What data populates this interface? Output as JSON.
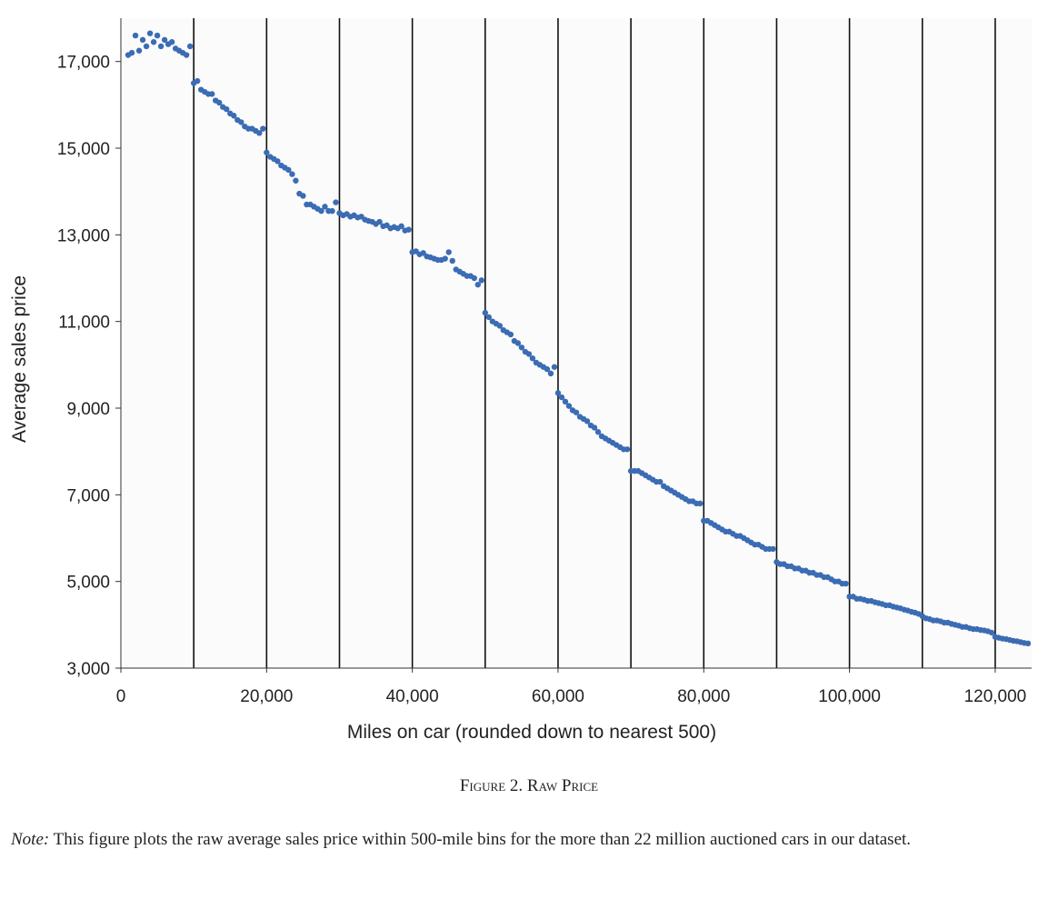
{
  "chart_data": {
    "type": "scatter",
    "x_label": "Miles on car (rounded down to nearest 500)",
    "y_label": "Average sales price",
    "color": "#3b6cb4",
    "xlim": [
      0,
      125000
    ],
    "ylim": [
      3000,
      18000
    ],
    "xticks": [
      0,
      {
        "value": 20000,
        "label": "20,000"
      },
      {
        "value": 40000,
        "label": "40,000"
      },
      {
        "value": 60000,
        "label": "60,000"
      },
      {
        "value": 80000,
        "label": "80,000"
      },
      {
        "value": 100000,
        "label": "100,000"
      },
      {
        "value": 120000,
        "label": "120,000"
      }
    ],
    "yticks": [
      {
        "value": 3000,
        "label": "3,000"
      },
      {
        "value": 5000,
        "label": "5,000"
      },
      {
        "value": 7000,
        "label": "7,000"
      },
      {
        "value": 9000,
        "label": "9,000"
      },
      {
        "value": 11000,
        "label": "11,000"
      },
      {
        "value": 13000,
        "label": "13,000"
      },
      {
        "value": 15000,
        "label": "15,000"
      },
      {
        "value": 17000,
        "label": "17,000"
      }
    ],
    "vertical_lines": [
      10000,
      20000,
      30000,
      40000,
      50000,
      60000,
      70000,
      80000,
      90000,
      100000,
      110000,
      120000
    ],
    "x": [
      1000,
      1500,
      2000,
      2500,
      3000,
      3500,
      4000,
      4500,
      5000,
      5500,
      6000,
      6500,
      7000,
      7500,
      8000,
      8500,
      9000,
      9500,
      10000,
      10500,
      11000,
      11500,
      12000,
      12500,
      13000,
      13500,
      14000,
      14500,
      15000,
      15500,
      16000,
      16500,
      17000,
      17500,
      18000,
      18500,
      19000,
      19500,
      20000,
      20500,
      21000,
      21500,
      22000,
      22500,
      23000,
      23500,
      24000,
      24500,
      25000,
      25500,
      26000,
      26500,
      27000,
      27500,
      28000,
      28500,
      29000,
      29500,
      30000,
      30500,
      31000,
      31500,
      32000,
      32500,
      33000,
      33500,
      34000,
      34500,
      35000,
      35500,
      36000,
      36500,
      37000,
      37500,
      38000,
      38500,
      39000,
      39500,
      40000,
      40500,
      41000,
      41500,
      42000,
      42500,
      43000,
      43500,
      44000,
      44500,
      45000,
      45500,
      46000,
      46500,
      47000,
      47500,
      48000,
      48500,
      49000,
      49500,
      50000,
      50500,
      51000,
      51500,
      52000,
      52500,
      53000,
      53500,
      54000,
      54500,
      55000,
      55500,
      56000,
      56500,
      57000,
      57500,
      58000,
      58500,
      59000,
      59500,
      60000,
      60500,
      61000,
      61500,
      62000,
      62500,
      63000,
      63500,
      64000,
      64500,
      65000,
      65500,
      66000,
      66500,
      67000,
      67500,
      68000,
      68500,
      69000,
      69500,
      70000,
      70500,
      71000,
      71500,
      72000,
      72500,
      73000,
      73500,
      74000,
      74500,
      75000,
      75500,
      76000,
      76500,
      77000,
      77500,
      78000,
      78500,
      79000,
      79500,
      80000,
      80500,
      81000,
      81500,
      82000,
      82500,
      83000,
      83500,
      84000,
      84500,
      85000,
      85500,
      86000,
      86500,
      87000,
      87500,
      88000,
      88500,
      89000,
      89500,
      90000,
      90500,
      91000,
      91500,
      92000,
      92500,
      93000,
      93500,
      94000,
      94500,
      95000,
      95500,
      96000,
      96500,
      97000,
      97500,
      98000,
      98500,
      99000,
      99500,
      100000,
      100500,
      101000,
      101500,
      102000,
      102500,
      103000,
      103500,
      104000,
      104500,
      105000,
      105500,
      106000,
      106500,
      107000,
      107500,
      108000,
      108500,
      109000,
      109500,
      110000,
      110500,
      111000,
      111500,
      112000,
      112500,
      113000,
      113500,
      114000,
      114500,
      115000,
      115500,
      116000,
      116500,
      117000,
      117500,
      118000,
      118500,
      119000,
      119500,
      120000,
      120500,
      121000,
      121500,
      122000,
      122500,
      123000,
      123500,
      124000,
      124500
    ],
    "values": [
      17150,
      17200,
      17600,
      17250,
      17500,
      17350,
      17650,
      17450,
      17600,
      17350,
      17500,
      17400,
      17450,
      17300,
      17250,
      17200,
      17150,
      17350,
      16500,
      16550,
      16350,
      16300,
      16250,
      16250,
      16100,
      16050,
      15950,
      15900,
      15800,
      15750,
      15650,
      15600,
      15500,
      15450,
      15450,
      15400,
      15350,
      15450,
      14900,
      14800,
      14750,
      14700,
      14600,
      14550,
      14500,
      14400,
      14250,
      13950,
      13900,
      13700,
      13700,
      13650,
      13600,
      13550,
      13650,
      13550,
      13550,
      13750,
      13500,
      13450,
      13480,
      13420,
      13450,
      13400,
      13420,
      13350,
      13320,
      13300,
      13250,
      13300,
      13200,
      13220,
      13150,
      13180,
      13150,
      13200,
      13100,
      13120,
      12600,
      12620,
      12550,
      12580,
      12500,
      12480,
      12450,
      12420,
      12420,
      12450,
      12600,
      12400,
      12200,
      12150,
      12100,
      12050,
      12050,
      12000,
      11850,
      11950,
      11200,
      11100,
      11000,
      10950,
      10900,
      10800,
      10750,
      10700,
      10550,
      10500,
      10400,
      10300,
      10250,
      10150,
      10050,
      10000,
      9950,
      9900,
      9800,
      9950,
      9350,
      9250,
      9150,
      9050,
      8950,
      8900,
      8800,
      8750,
      8700,
      8600,
      8550,
      8450,
      8350,
      8300,
      8250,
      8200,
      8150,
      8100,
      8050,
      8050,
      7550,
      7550,
      7550,
      7500,
      7450,
      7400,
      7350,
      7300,
      7300,
      7200,
      7150,
      7100,
      7050,
      7000,
      6950,
      6900,
      6850,
      6850,
      6800,
      6800,
      6400,
      6400,
      6350,
      6300,
      6250,
      6200,
      6150,
      6150,
      6100,
      6050,
      6050,
      6000,
      5950,
      5900,
      5850,
      5850,
      5800,
      5750,
      5750,
      5750,
      5450,
      5400,
      5400,
      5350,
      5350,
      5300,
      5300,
      5250,
      5250,
      5200,
      5200,
      5150,
      5150,
      5100,
      5100,
      5050,
      5000,
      5000,
      4950,
      4950,
      4650,
      4650,
      4600,
      4600,
      4580,
      4550,
      4550,
      4520,
      4500,
      4480,
      4450,
      4450,
      4420,
      4400,
      4380,
      4350,
      4330,
      4300,
      4280,
      4250,
      4200,
      4150,
      4130,
      4100,
      4100,
      4080,
      4050,
      4050,
      4020,
      4000,
      3980,
      3950,
      3950,
      3920,
      3900,
      3900,
      3880,
      3870,
      3850,
      3820,
      3720,
      3700,
      3680,
      3670,
      3650,
      3630,
      3620,
      3600,
      3580,
      3570
    ]
  },
  "caption": "Figure 2. Raw Price",
  "note_label": "Note:",
  "note": "This figure plots the raw average sales price within 500-mile bins for the more than 22 million auctioned cars in our dataset."
}
